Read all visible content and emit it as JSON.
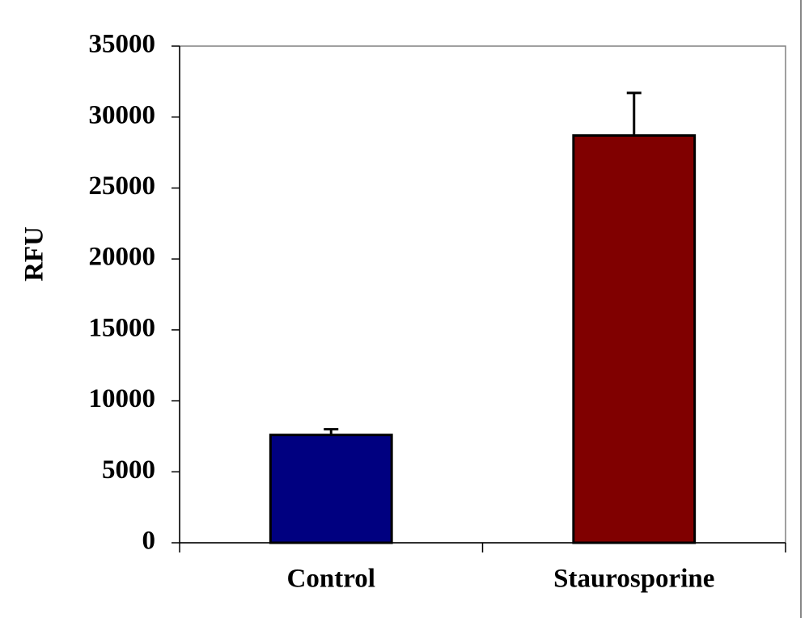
{
  "chart_data": {
    "type": "bar",
    "y_label": "RFU",
    "categories": [
      "Control",
      "Staurosporine"
    ],
    "values": [
      7600,
      28700
    ],
    "errors": [
      400,
      3000
    ],
    "colors": [
      "#000080",
      "#800000"
    ],
    "ylim": [
      0,
      35000
    ],
    "yticks": [
      0,
      5000,
      10000,
      15000,
      20000,
      25000,
      30000,
      35000
    ]
  }
}
